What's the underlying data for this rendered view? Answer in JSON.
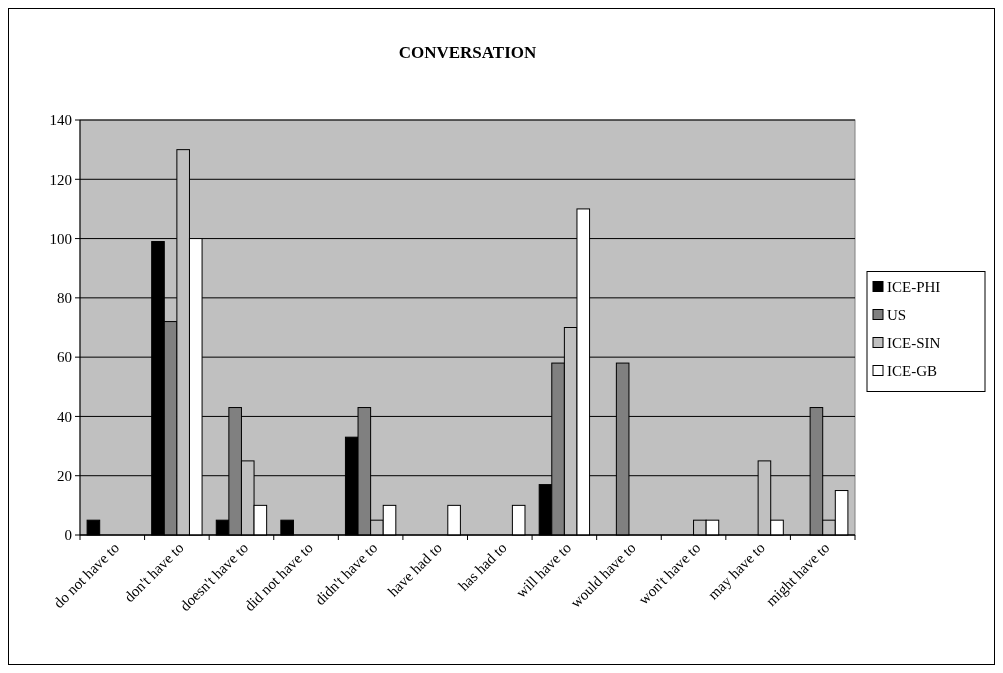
{
  "chart_data": {
    "type": "bar",
    "title": "CONVERSATION",
    "categories": [
      "do not have to",
      "don't have to",
      "doesn't have to",
      "did not have to",
      "didn't have to",
      "have had to",
      "has had to",
      "will have to",
      "would have to",
      "won't have to",
      "may have to",
      "might have to"
    ],
    "series": [
      {
        "name": "ICE-PHI",
        "color": "#000000",
        "values": [
          5,
          99,
          5,
          5,
          33,
          0,
          0,
          17,
          0,
          0,
          0,
          0
        ]
      },
      {
        "name": "US",
        "color": "#808080",
        "values": [
          0,
          72,
          43,
          0,
          43,
          0,
          0,
          58,
          58,
          0,
          0,
          43
        ]
      },
      {
        "name": "ICE-SIN",
        "color": "#c0c0c0",
        "values": [
          0,
          130,
          25,
          0,
          5,
          0,
          0,
          70,
          0,
          5,
          25,
          5
        ]
      },
      {
        "name": "ICE-GB",
        "color": "#ffffff",
        "values": [
          0,
          100,
          10,
          0,
          10,
          10,
          10,
          110,
          0,
          5,
          5,
          15
        ]
      }
    ],
    "ylim": [
      0,
      140
    ],
    "yticks": [
      0,
      20,
      40,
      60,
      80,
      100,
      120,
      140
    ],
    "grid": "y",
    "legend": "right"
  }
}
